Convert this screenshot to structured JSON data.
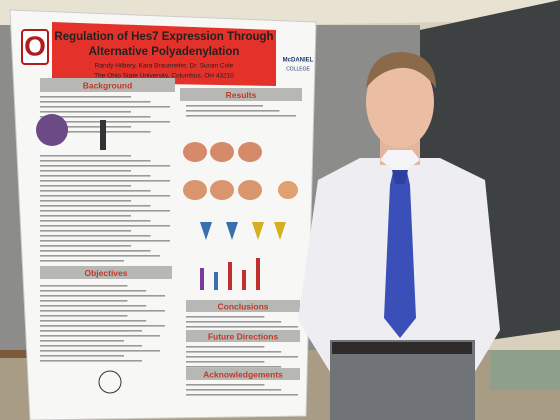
{
  "poster": {
    "logo_letter": "O",
    "title_lines": [
      "Regulation of Hes7 Expression Through",
      "Alternative Polyadenylation"
    ],
    "authors": "Randy Hilbery, Kara Braunreiter, Dr. Susan Cole",
    "affiliation": "The Ohio State University, Columbus, OH 43210",
    "college_logo": [
      "McDANIEL",
      "COLLEGE"
    ],
    "sections": [
      "Background",
      "Results",
      "Objectives",
      "Conclusions",
      "Future Directions",
      "Acknowledgements"
    ]
  }
}
